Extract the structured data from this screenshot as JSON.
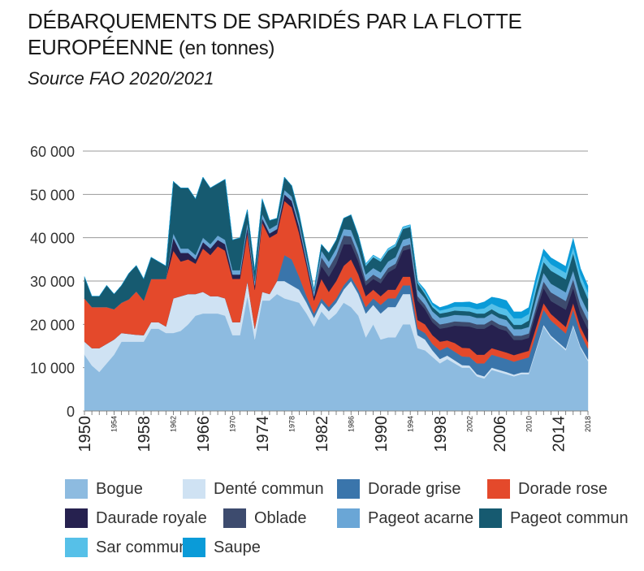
{
  "header": {
    "title_line1": "DÉBARQUEMENTS DE SPARIDÉS PAR LA FLOTTE",
    "title_line2": "EUROPÉENNE",
    "title_unit": "(en tonnes)",
    "subtitle": "Source FAO 2020/2021"
  },
  "chart_data": {
    "type": "area",
    "stacked": true,
    "ylim": [
      0,
      60000
    ],
    "xlim": [
      1950,
      2018
    ],
    "y_ticks": [
      0,
      10000,
      20000,
      30000,
      40000,
      50000,
      60000
    ],
    "y_tick_labels": [
      "0",
      "10 000",
      "20 000",
      "30 000",
      "40 000",
      "50 000",
      "60 000"
    ],
    "x_ticks_large": [
      "1950",
      "1958",
      "1966",
      "1974",
      "1982",
      "1990",
      "1998",
      "2006",
      "2014"
    ],
    "x_ticks_small": [
      "1954",
      "1962",
      "1970",
      "1978",
      "1986",
      "1994",
      "2002",
      "2010",
      "2018"
    ],
    "grid": "horizontal",
    "legend_position": "bottom",
    "x": [
      1950,
      1951,
      1952,
      1953,
      1954,
      1955,
      1956,
      1957,
      1958,
      1959,
      1960,
      1961,
      1962,
      1963,
      1964,
      1965,
      1966,
      1967,
      1968,
      1969,
      1970,
      1971,
      1972,
      1973,
      1974,
      1975,
      1976,
      1977,
      1978,
      1979,
      1980,
      1981,
      1982,
      1983,
      1984,
      1985,
      1986,
      1987,
      1988,
      1989,
      1990,
      1991,
      1992,
      1993,
      1994,
      1995,
      1996,
      1997,
      1998,
      1999,
      2000,
      2001,
      2002,
      2003,
      2004,
      2005,
      2006,
      2007,
      2008,
      2009,
      2010,
      2011,
      2012,
      2013,
      2014,
      2015,
      2016,
      2017,
      2018
    ],
    "series": [
      {
        "name": "Bogue",
        "color": "#8dbbe0",
        "values": [
          13000,
          10500,
          9000,
          11000,
          13000,
          16000,
          16000,
          16000,
          16000,
          19000,
          19000,
          18000,
          18000,
          18500,
          20000,
          22000,
          22500,
          22500,
          22500,
          22000,
          17500,
          17500,
          26500,
          16500,
          25500,
          25500,
          27000,
          26000,
          25500,
          25000,
          22500,
          19500,
          23000,
          21000,
          22500,
          25000,
          24000,
          22000,
          17000,
          20000,
          16500,
          17000,
          17000,
          20000,
          20000,
          14500,
          14000,
          12500,
          11000,
          12000,
          11000,
          10000,
          10000,
          8000,
          7500,
          9500,
          9000,
          8500,
          8000,
          8500,
          8500,
          14000,
          19500,
          17000,
          15500,
          14000,
          19500,
          14500,
          11500
        ]
      },
      {
        "name": "Denté commun",
        "color": "#cfe2f3",
        "values": [
          3000,
          4000,
          5500,
          4500,
          3500,
          2000,
          1800,
          1600,
          1500,
          1500,
          1500,
          1500,
          8000,
          8000,
          7000,
          5000,
          5000,
          4000,
          4000,
          4000,
          3000,
          3000,
          3500,
          2500,
          2000,
          1500,
          3000,
          4000,
          3500,
          3000,
          2500,
          2000,
          2000,
          2000,
          2500,
          3000,
          6000,
          5000,
          5500,
          4500,
          6000,
          7000,
          7000,
          7000,
          7000,
          3000,
          2500,
          1500,
          1000,
          800,
          700,
          600,
          500,
          500,
          500,
          500,
          500,
          500,
          400,
          400,
          400,
          400,
          400,
          400,
          400,
          400,
          400,
          400,
          400
        ]
      },
      {
        "name": "Dorade grise",
        "color": "#3a75ab",
        "values": [
          0,
          0,
          0,
          0,
          0,
          0,
          0,
          0,
          0,
          0,
          0,
          0,
          0,
          0,
          0,
          0,
          0,
          0,
          0,
          0,
          0,
          0,
          0,
          0,
          0,
          0,
          0,
          6000,
          6000,
          3000,
          1500,
          1000,
          1000,
          1000,
          1000,
          1000,
          1000,
          1000,
          1500,
          1500,
          2000,
          2000,
          2000,
          2000,
          2000,
          1500,
          1500,
          1500,
          2000,
          2000,
          2000,
          2000,
          2000,
          2500,
          3000,
          3000,
          3000,
          3000,
          3000,
          3000,
          3500,
          3500,
          3500,
          3500,
          3500,
          3500,
          3500,
          3000,
          2500
        ]
      },
      {
        "name": "Dorade rose",
        "color": "#e4492b",
        "values": [
          10000,
          9500,
          9500,
          8500,
          7000,
          7000,
          8000,
          10000,
          8000,
          10000,
          10000,
          11000,
          11000,
          8000,
          8000,
          7000,
          10000,
          9500,
          11500,
          11000,
          10000,
          10000,
          11000,
          9000,
          16000,
          13000,
          11000,
          12500,
          12000,
          10000,
          7000,
          3000,
          4500,
          3500,
          4000,
          4500,
          4000,
          3500,
          2500,
          2000,
          2000,
          2000,
          2000,
          2000,
          2000,
          2000,
          2000,
          2000,
          2000,
          1500,
          2000,
          2000,
          2000,
          2000,
          2000,
          1500,
          1500,
          1500,
          1500,
          1500,
          1500,
          1500,
          1500,
          1500,
          1500,
          1500,
          1500,
          1500,
          1500
        ]
      },
      {
        "name": "Daurade royale",
        "color": "#26214f",
        "values": [
          0,
          0,
          0,
          0,
          0,
          0,
          0,
          0,
          0,
          0,
          0,
          0,
          3000,
          2000,
          1500,
          1000,
          1500,
          1500,
          1500,
          1500,
          1000,
          1000,
          1500,
          1000,
          1000,
          1000,
          1000,
          1500,
          1500,
          1500,
          1000,
          1000,
          3000,
          3500,
          4000,
          5000,
          3500,
          3000,
          2500,
          2500,
          3000,
          4000,
          5000,
          6000,
          6500,
          4500,
          3500,
          3000,
          3000,
          3000,
          4000,
          5000,
          5000,
          6000,
          6000,
          5500,
          5000,
          5000,
          3500,
          3000,
          3000,
          3500,
          3500,
          3000,
          3500,
          4000,
          3500,
          3000,
          3000
        ]
      },
      {
        "name": "Oblade",
        "color": "#3d4b6e",
        "values": [
          0,
          0,
          0,
          0,
          0,
          0,
          0,
          0,
          0,
          0,
          0,
          0,
          0,
          0,
          0,
          0,
          0,
          0,
          0,
          0,
          0,
          0,
          0,
          0,
          0,
          0,
          0,
          0,
          0,
          0,
          0,
          0,
          2000,
          2000,
          2000,
          2000,
          1800,
          1500,
          1000,
          1000,
          1000,
          1000,
          1000,
          1000,
          1000,
          1000,
          1000,
          1000,
          1000,
          1000,
          1000,
          1000,
          1000,
          1000,
          1000,
          1000,
          1000,
          1000,
          1000,
          1000,
          1000,
          1200,
          1500,
          2000,
          2000,
          2000,
          2000,
          2000,
          2000
        ]
      },
      {
        "name": "Pageot acarne",
        "color": "#6aa6d6",
        "values": [
          0,
          0,
          0,
          0,
          0,
          0,
          0,
          0,
          0,
          0,
          0,
          0,
          1000,
          1000,
          1000,
          1000,
          1000,
          1000,
          1000,
          1000,
          1000,
          1000,
          1000,
          1000,
          1000,
          1000,
          1000,
          1000,
          1000,
          1000,
          1000,
          1000,
          1500,
          1500,
          1500,
          1500,
          1500,
          1500,
          1500,
          1500,
          1500,
          1500,
          1500,
          1500,
          1500,
          1500,
          1500,
          1500,
          1500,
          1500,
          1500,
          1500,
          1500,
          1500,
          1500,
          1500,
          1500,
          1500,
          1500,
          1500,
          1500,
          2000,
          2000,
          2000,
          2000,
          2000,
          2000,
          2000,
          2000
        ]
      },
      {
        "name": "Pageot commun",
        "color": "#165a70",
        "values": [
          5000,
          2500,
          2500,
          5000,
          3500,
          4000,
          6000,
          6000,
          5000,
          5000,
          4000,
          3000,
          12000,
          14000,
          14000,
          13000,
          14000,
          13000,
          12000,
          14000,
          7000,
          7500,
          3000,
          2500,
          3500,
          2000,
          1500,
          3000,
          2500,
          2000,
          1500,
          500,
          1500,
          2000,
          2000,
          2500,
          3500,
          3000,
          2000,
          2500,
          2500,
          2500,
          2500,
          2500,
          2500,
          1500,
          1000,
          1000,
          1000,
          1000,
          1000,
          1000,
          1000,
          1000,
          1000,
          1000,
          1000,
          1000,
          1000,
          1000,
          1500,
          2000,
          2500,
          3000,
          3000,
          3000,
          4000,
          3500,
          3000
        ]
      },
      {
        "name": "Sar commun",
        "color": "#56c0e8",
        "values": [
          0,
          0,
          0,
          0,
          0,
          0,
          0,
          0,
          0,
          0,
          0,
          0,
          0,
          0,
          0,
          0,
          0,
          0,
          0,
          0,
          0,
          0,
          0,
          0,
          0,
          0,
          0,
          0,
          0,
          0,
          0,
          0,
          0,
          0,
          0,
          0,
          0,
          0,
          500,
          500,
          500,
          500,
          500,
          500,
          500,
          500,
          500,
          500,
          700,
          800,
          900,
          1000,
          1000,
          1000,
          1200,
          1300,
          1500,
          1500,
          1500,
          1500,
          1500,
          1500,
          1500,
          1500,
          1500,
          1500,
          1500,
          1500,
          1500
        ]
      },
      {
        "name": "Saupe",
        "color": "#0a9bd8",
        "values": [
          0,
          0,
          0,
          0,
          0,
          0,
          0,
          0,
          0,
          0,
          0,
          0,
          0,
          0,
          0,
          0,
          0,
          0,
          0,
          0,
          0,
          0,
          0,
          0,
          0,
          0,
          0,
          0,
          0,
          0,
          0,
          0,
          0,
          0,
          0,
          0,
          0,
          0,
          0,
          0,
          0,
          0,
          0,
          0,
          0,
          0,
          500,
          500,
          700,
          800,
          1000,
          1000,
          1200,
          1200,
          1500,
          1500,
          2000,
          2000,
          1500,
          1500,
          1500,
          1500,
          1500,
          1500,
          1500,
          1500,
          2000,
          1500,
          1500
        ]
      }
    ]
  }
}
